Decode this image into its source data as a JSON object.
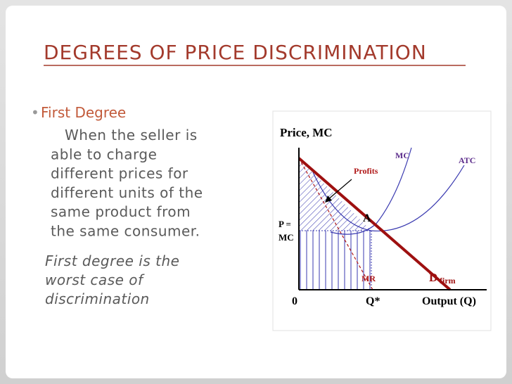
{
  "slide": {
    "title": "DEGREES OF PRICE DISCRIMINATION",
    "bullet": "First Degree",
    "body_lines": [
      "When the seller is",
      "able to charge",
      "different prices for",
      "different units of the",
      "same product from",
      "the same consumer."
    ],
    "note_lines": [
      "First degree is the",
      "worst case of",
      "discrimination"
    ]
  },
  "diagram": {
    "y_axis_label": "Price, MC",
    "x_axis_label": "Output (Q)",
    "origin": "0",
    "q_star": "Q*",
    "price_label_lines": [
      "P =",
      "MC"
    ],
    "mc": "MC",
    "atc": "ATC",
    "profits": "Profits",
    "point_a": "A",
    "mr": "MR",
    "demand": "D",
    "demand_sub": "firm"
  }
}
